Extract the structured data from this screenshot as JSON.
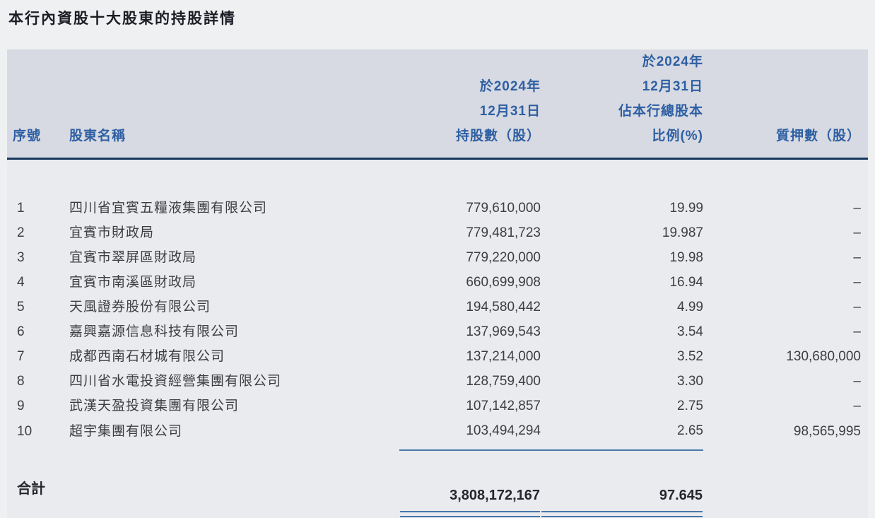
{
  "title": "本行內資股十大股東的持股詳情",
  "colors": {
    "accent": "#2e5fa3",
    "rule": "#17365d",
    "underline": "#4a76ab",
    "band-bg": "#d7dae2",
    "body-bg": "#e9ebee",
    "page-bg": "#eff0f2"
  },
  "table": {
    "columns": {
      "index": "序號",
      "name": "股東名稱",
      "shares_line1": "於2024年",
      "shares_line2": "12月31日",
      "shares_line3": "持股數（股）",
      "pct_line1": "於2024年",
      "pct_line2": "12月31日",
      "pct_line3": "佔本行總股本",
      "pct_line4": "比例(%)",
      "pledged": "質押數（股）"
    },
    "rows": [
      {
        "index": "1",
        "name": "四川省宜賓五糧液集團有限公司",
        "shares": "779,610,000",
        "pct": "19.99",
        "pledged": "–"
      },
      {
        "index": "2",
        "name": "宜賓市財政局",
        "shares": "779,481,723",
        "pct": "19.987",
        "pledged": "–"
      },
      {
        "index": "3",
        "name": "宜賓市翠屏區財政局",
        "shares": "779,220,000",
        "pct": "19.98",
        "pledged": "–"
      },
      {
        "index": "4",
        "name": "宜賓市南溪區財政局",
        "shares": "660,699,908",
        "pct": "16.94",
        "pledged": "–"
      },
      {
        "index": "5",
        "name": "天風證券股份有限公司",
        "shares": "194,580,442",
        "pct": "4.99",
        "pledged": "–"
      },
      {
        "index": "6",
        "name": "嘉興嘉源信息科技有限公司",
        "shares": "137,969,543",
        "pct": "3.54",
        "pledged": "–"
      },
      {
        "index": "7",
        "name": "成都西南石材城有限公司",
        "shares": "137,214,000",
        "pct": "3.52",
        "pledged": "130,680,000"
      },
      {
        "index": "8",
        "name": "四川省水電投資經營集團有限公司",
        "shares": "128,759,400",
        "pct": "3.30",
        "pledged": "–"
      },
      {
        "index": "9",
        "name": "武漢天盈投資集團有限公司",
        "shares": "107,142,857",
        "pct": "2.75",
        "pledged": "–"
      },
      {
        "index": "10",
        "name": "超宇集團有限公司",
        "shares": "103,494,294",
        "pct": "2.65",
        "pledged": "98,565,995"
      }
    ],
    "total": {
      "label": "合計",
      "shares": "3,808,172,167",
      "pct": "97.645",
      "pledged": ""
    }
  }
}
